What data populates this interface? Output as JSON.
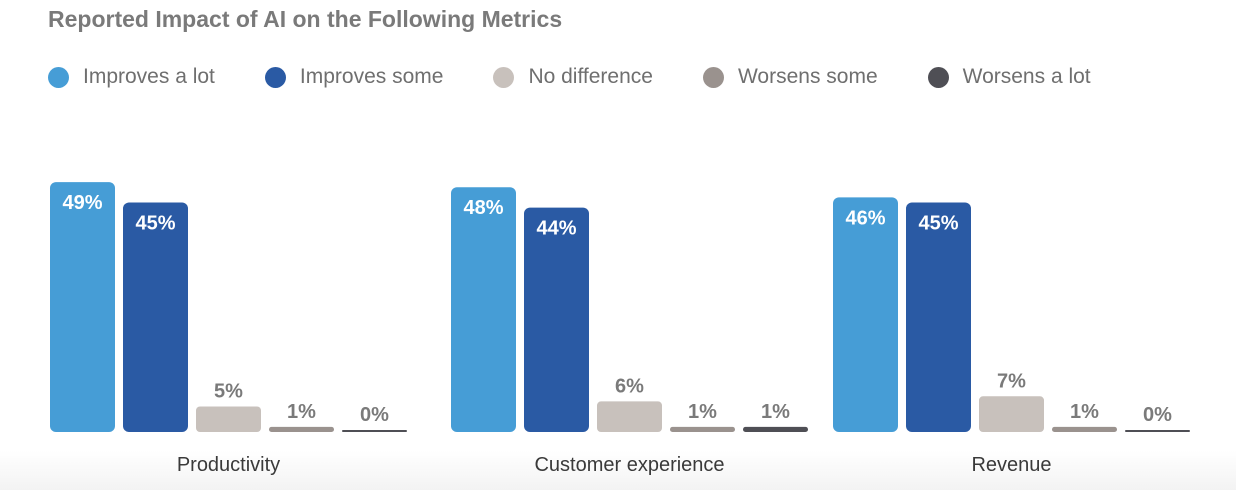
{
  "colors": {
    "title": "#7a7a7a",
    "legend_text": "#6f6f6f",
    "value_label_light": "#ffffff",
    "value_label_dark": "#7a7a7a",
    "category_label": "#3a3a3a"
  },
  "chart_data": {
    "type": "bar",
    "title": "Reported Impact of AI on the Following Metrics",
    "xlabel": "",
    "ylabel": "",
    "ylim": [
      0,
      50
    ],
    "grid": false,
    "legend_placement": "top-left",
    "categories": [
      "Productivity",
      "Customer experience",
      "Revenue"
    ],
    "series": [
      {
        "name": "Improves a lot",
        "color": "#469dd6",
        "values": [
          49,
          48,
          46
        ],
        "labels": [
          "49%",
          "48%",
          "46%"
        ]
      },
      {
        "name": "Improves some",
        "color": "#2a5aa4",
        "values": [
          45,
          44,
          45
        ],
        "labels": [
          "45%",
          "44%",
          "45%"
        ]
      },
      {
        "name": "No difference",
        "color": "#c8c1bc",
        "values": [
          5,
          6,
          7
        ],
        "labels": [
          "5%",
          "6%",
          "7%"
        ]
      },
      {
        "name": "Worsens some",
        "color": "#9a928e",
        "values": [
          1,
          1,
          1
        ],
        "labels": [
          "1%",
          "1%",
          "1%"
        ]
      },
      {
        "name": "Worsens a lot",
        "color": "#4f4f55",
        "values": [
          0,
          1,
          0
        ],
        "labels": [
          "0%",
          "1%",
          "0%"
        ]
      }
    ]
  }
}
